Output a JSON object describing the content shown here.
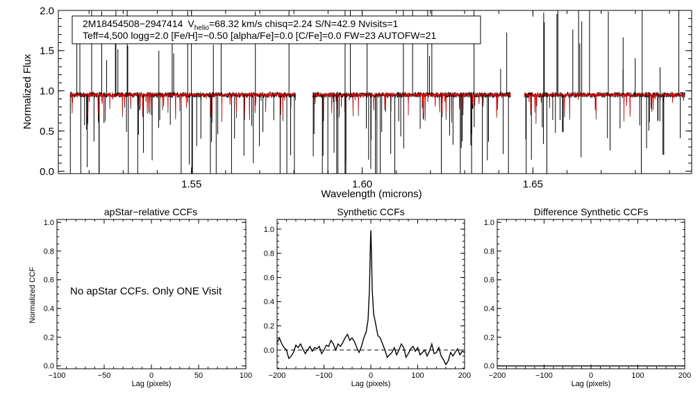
{
  "chart_data": [
    {
      "type": "line",
      "id": "spectrum",
      "xlabel": "Wavelength (microns)",
      "ylabel": "Normalized Flux",
      "xlim": [
        1.511,
        1.6965
      ],
      "ylim": [
        -0.03,
        2.0
      ],
      "xticks": [
        1.55,
        1.6,
        1.65
      ],
      "xtick_labels": [
        "1.55",
        "1.60",
        "1.65"
      ],
      "yticks": [
        0.0,
        0.5,
        1.0,
        1.5,
        2.0
      ],
      "ytick_labels": [
        "0.0",
        "0.5",
        "1.0",
        "1.5",
        "2.0"
      ],
      "detector_ranges": [
        [
          1.5145,
          1.5805
        ],
        [
          1.5855,
          1.6435
        ],
        [
          1.6475,
          1.6945
        ]
      ],
      "series": [
        {
          "name": "observed apStar spectrum",
          "color": "#000000",
          "baseline": 0.95,
          "noise": 0.035
        },
        {
          "name": "best-fit synthetic spectrum",
          "color": "#e00000",
          "baseline": 0.95,
          "noise": 0.02
        }
      ],
      "annotation": {
        "line1_star": "2M18454508−2947414",
        "line1_vsym": "V",
        "line1_vsub": "helio",
        "line1_vrest": "=68.32 km/s  chisq=2.24  S/N=42.9  Nvisits=1",
        "line2": "Teff=4,500 logg=2.0 [Fe/H]=−0.50 [alpha/Fe]=0.0 [C/Fe]=0.0 FW=23 AUTOFW=21"
      }
    },
    {
      "type": "line",
      "id": "apstar_ccf",
      "title": "apStar−relative CCFs",
      "xlabel": "Lag (pixels)",
      "ylabel": "Normalized CCF",
      "xlim": [
        -100,
        100
      ],
      "ylim": [
        -0.02,
        1.02
      ],
      "xticks": [
        -100,
        -50,
        0,
        50,
        100
      ],
      "xtick_labels": [
        "−100",
        "−50",
        "0",
        "50",
        "100"
      ],
      "yticks": [
        0.0,
        0.2,
        0.4,
        0.6,
        0.8,
        1.0
      ],
      "ytick_labels": [
        "0.0",
        "0.2",
        "0.4",
        "0.6",
        "0.8",
        "1.0"
      ],
      "message": "No apStar CCFs.  Only ONE Visit",
      "series": []
    },
    {
      "type": "line",
      "id": "synthetic_ccf",
      "title": "Synthetic CCFs",
      "xlabel": "Lag (pixels)",
      "xlim": [
        -200,
        200
      ],
      "ylim": [
        -0.155,
        1.08
      ],
      "xticks": [
        -200,
        -100,
        0,
        100,
        200
      ],
      "xtick_labels": [
        "−200",
        "−100",
        "0",
        "100",
        "200"
      ],
      "yticks": [
        0.0,
        0.2,
        0.4,
        0.6,
        0.8,
        1.0
      ],
      "ytick_labels": [
        "0.0",
        "0.2",
        "0.4",
        "0.6",
        "0.8",
        "1.0"
      ],
      "zero_line": 0.0,
      "series": [
        {
          "name": "synthetic CCF",
          "x": [
            -200,
            -195,
            -190,
            -185,
            -180,
            -175,
            -170,
            -165,
            -160,
            -155,
            -150,
            -145,
            -140,
            -135,
            -130,
            -125,
            -120,
            -115,
            -110,
            -105,
            -100,
            -95,
            -90,
            -85,
            -80,
            -75,
            -70,
            -65,
            -60,
            -55,
            -50,
            -45,
            -40,
            -35,
            -30,
            -25,
            -20,
            -15,
            -10,
            -6,
            -3,
            -1,
            0,
            1,
            3,
            6,
            10,
            15,
            20,
            25,
            30,
            35,
            40,
            45,
            50,
            55,
            60,
            65,
            70,
            75,
            80,
            85,
            90,
            95,
            100,
            105,
            110,
            115,
            120,
            125,
            130,
            135,
            140,
            145,
            150,
            155,
            160,
            165,
            170,
            175,
            180,
            185,
            190,
            195,
            200
          ],
          "y": [
            0.06,
            0.1,
            0.05,
            0.02,
            0.0,
            -0.07,
            -0.05,
            -0.02,
            0.04,
            0.02,
            0.05,
            0.01,
            -0.03,
            0.0,
            0.03,
            -0.01,
            0.02,
            0.01,
            0.03,
            -0.03,
            0.0,
            0.04,
            0.03,
            0.08,
            0.05,
            0.0,
            0.05,
            0.03,
            0.06,
            0.1,
            0.13,
            0.08,
            0.1,
            0.07,
            0.02,
            -0.02,
            0.03,
            0.1,
            0.15,
            0.25,
            0.5,
            0.85,
            0.99,
            0.85,
            0.5,
            0.3,
            0.22,
            0.12,
            0.1,
            0.05,
            0.0,
            -0.06,
            -0.04,
            -0.02,
            0.02,
            -0.04,
            0.0,
            0.05,
            0.02,
            -0.06,
            -0.03,
            0.01,
            0.03,
            -0.01,
            0.02,
            -0.04,
            -0.02,
            0.0,
            -0.05,
            -0.01,
            0.05,
            -0.03,
            -0.02,
            0.02,
            -0.05,
            -0.08,
            -0.12,
            -0.09,
            -0.02,
            -0.05,
            -0.02,
            0.01,
            -0.04,
            -0.01,
            -0.02
          ]
        }
      ]
    },
    {
      "type": "line",
      "id": "difference_ccf",
      "title": "Difference Synthetic CCFs",
      "xlabel": "Lag (pixels)",
      "xlim": [
        -200,
        200
      ],
      "ylim": [
        -0.02,
        1.02
      ],
      "xticks": [
        -200,
        -100,
        0,
        100,
        200
      ],
      "xtick_labels": [
        "−200",
        "−100",
        "0",
        "100",
        "200"
      ],
      "yticks": [
        0.0,
        0.2,
        0.4,
        0.6,
        0.8,
        1.0
      ],
      "ytick_labels": [
        "0.0",
        "0.2",
        "0.4",
        "0.6",
        "0.8",
        "1.0"
      ],
      "series": [
        {
          "name": "difference CCF",
          "x": [
            -200,
            200
          ],
          "y": [
            0.0,
            0.0
          ]
        }
      ]
    }
  ]
}
